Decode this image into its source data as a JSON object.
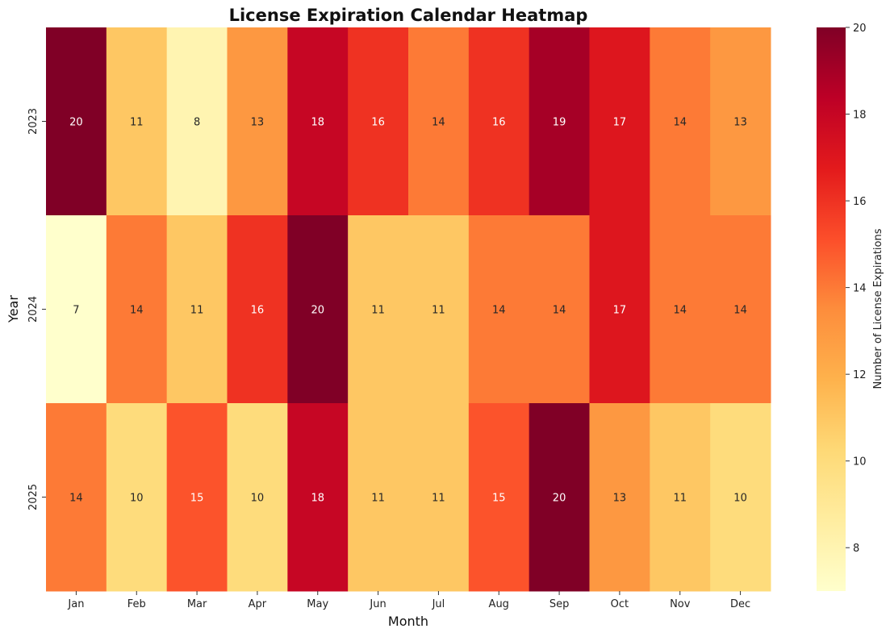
{
  "chart_data": {
    "type": "heatmap",
    "title": "License Expiration Calendar Heatmap",
    "xlabel": "Month",
    "ylabel": "Year",
    "x_categories": [
      "Jan",
      "Feb",
      "Mar",
      "Apr",
      "May",
      "Jun",
      "Jul",
      "Aug",
      "Sep",
      "Oct",
      "Nov",
      "Dec"
    ],
    "y_categories": [
      "2023",
      "2024",
      "2025"
    ],
    "values": [
      [
        20,
        11,
        8,
        13,
        18,
        16,
        14,
        16,
        19,
        17,
        14,
        13
      ],
      [
        7,
        14,
        11,
        16,
        20,
        11,
        11,
        14,
        14,
        17,
        14,
        14
      ],
      [
        14,
        10,
        15,
        10,
        18,
        11,
        11,
        15,
        20,
        13,
        11,
        10
      ]
    ],
    "colorbar": {
      "label": "Number of License Expirations",
      "range": [
        7,
        20
      ],
      "ticks": [
        8,
        10,
        12,
        14,
        16,
        18,
        20
      ]
    },
    "colormap": [
      "#ffffcc",
      "#ffeda0",
      "#fed976",
      "#feb24c",
      "#fd8d3c",
      "#fc4e2a",
      "#e31a1c",
      "#bd0026",
      "#800026"
    ]
  }
}
